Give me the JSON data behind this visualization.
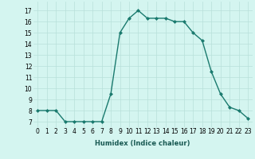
{
  "x": [
    0,
    1,
    2,
    3,
    4,
    5,
    6,
    7,
    8,
    9,
    10,
    11,
    12,
    13,
    14,
    15,
    16,
    17,
    18,
    19,
    20,
    21,
    22,
    23
  ],
  "y": [
    8,
    8,
    8,
    7,
    7,
    7,
    7,
    7,
    9.5,
    15,
    16.3,
    17,
    16.3,
    16.3,
    16.3,
    16,
    16,
    15,
    14.3,
    11.5,
    9.5,
    8.3,
    8,
    7.3
  ],
  "title": "",
  "xlabel": "Humidex (Indice chaleur)",
  "ylabel": "",
  "xlim": [
    -0.5,
    23.5
  ],
  "ylim": [
    6.5,
    17.8
  ],
  "yticks": [
    7,
    8,
    9,
    10,
    11,
    12,
    13,
    14,
    15,
    16,
    17
  ],
  "xticks": [
    0,
    1,
    2,
    3,
    4,
    5,
    6,
    7,
    8,
    9,
    10,
    11,
    12,
    13,
    14,
    15,
    16,
    17,
    18,
    19,
    20,
    21,
    22,
    23
  ],
  "line_color": "#1a7a6e",
  "marker": "D",
  "marker_size": 2.0,
  "bg_color": "#d4f5f0",
  "grid_color": "#b8e0da",
  "tick_fontsize": 5.5,
  "xlabel_fontsize": 6.0,
  "linewidth": 1.0
}
